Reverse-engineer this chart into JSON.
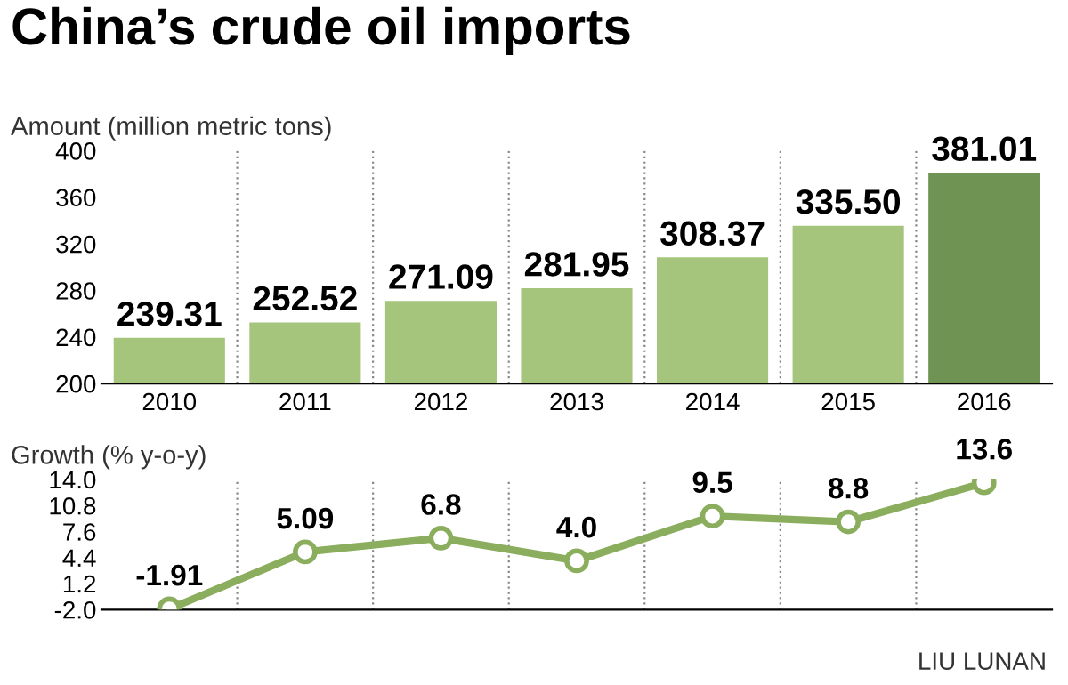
{
  "chart_data": [
    {
      "type": "bar",
      "title": "China’s crude oil imports",
      "ylabel": "Amount (million metric tons)",
      "categories": [
        "2010",
        "2011",
        "2012",
        "2013",
        "2014",
        "2015",
        "2016"
      ],
      "values": [
        239.31,
        252.52,
        271.09,
        281.95,
        308.37,
        335.5,
        381.01
      ],
      "value_labels": [
        "239.31",
        "252.52",
        "271.09",
        "281.95",
        "308.37",
        "335.50",
        "381.01"
      ],
      "colors": [
        "#a5c47c",
        "#a5c47c",
        "#a5c47c",
        "#a5c47c",
        "#a5c47c",
        "#a5c47c",
        "#6f9352"
      ],
      "ylim": [
        200,
        400
      ],
      "yticks": [
        200,
        240,
        280,
        320,
        360,
        400
      ],
      "grid": "x"
    },
    {
      "type": "line",
      "ylabel": "Growth (% y-o-y)",
      "categories": [
        "2010",
        "2011",
        "2012",
        "2013",
        "2014",
        "2015",
        "2016"
      ],
      "series": [
        {
          "color": "#8aae5d",
          "values": [
            -1.91,
            5.09,
            6.8,
            4.0,
            9.5,
            8.8,
            13.6
          ],
          "value_labels": [
            "-1.91",
            "5.09",
            "6.8",
            "4.0",
            "9.5",
            "8.8",
            "13.6"
          ]
        }
      ],
      "ylim": [
        -2.0,
        14.0
      ],
      "yticks": [
        {
          "value": 14.0,
          "label": "14.0"
        },
        {
          "value": 10.8,
          "label": "10.8"
        },
        {
          "value": 7.6,
          "label": "7.6"
        },
        {
          "value": 4.4,
          "label": "4.4"
        },
        {
          "value": 1.2,
          "label": "1.2"
        },
        {
          "value": -2.0,
          "label": "-2.0"
        }
      ],
      "marker": "circle",
      "line_style": "solid",
      "grid": "x",
      "tick_labels": "y",
      "annotations": [
        "LIU LUNAN"
      ]
    }
  ]
}
